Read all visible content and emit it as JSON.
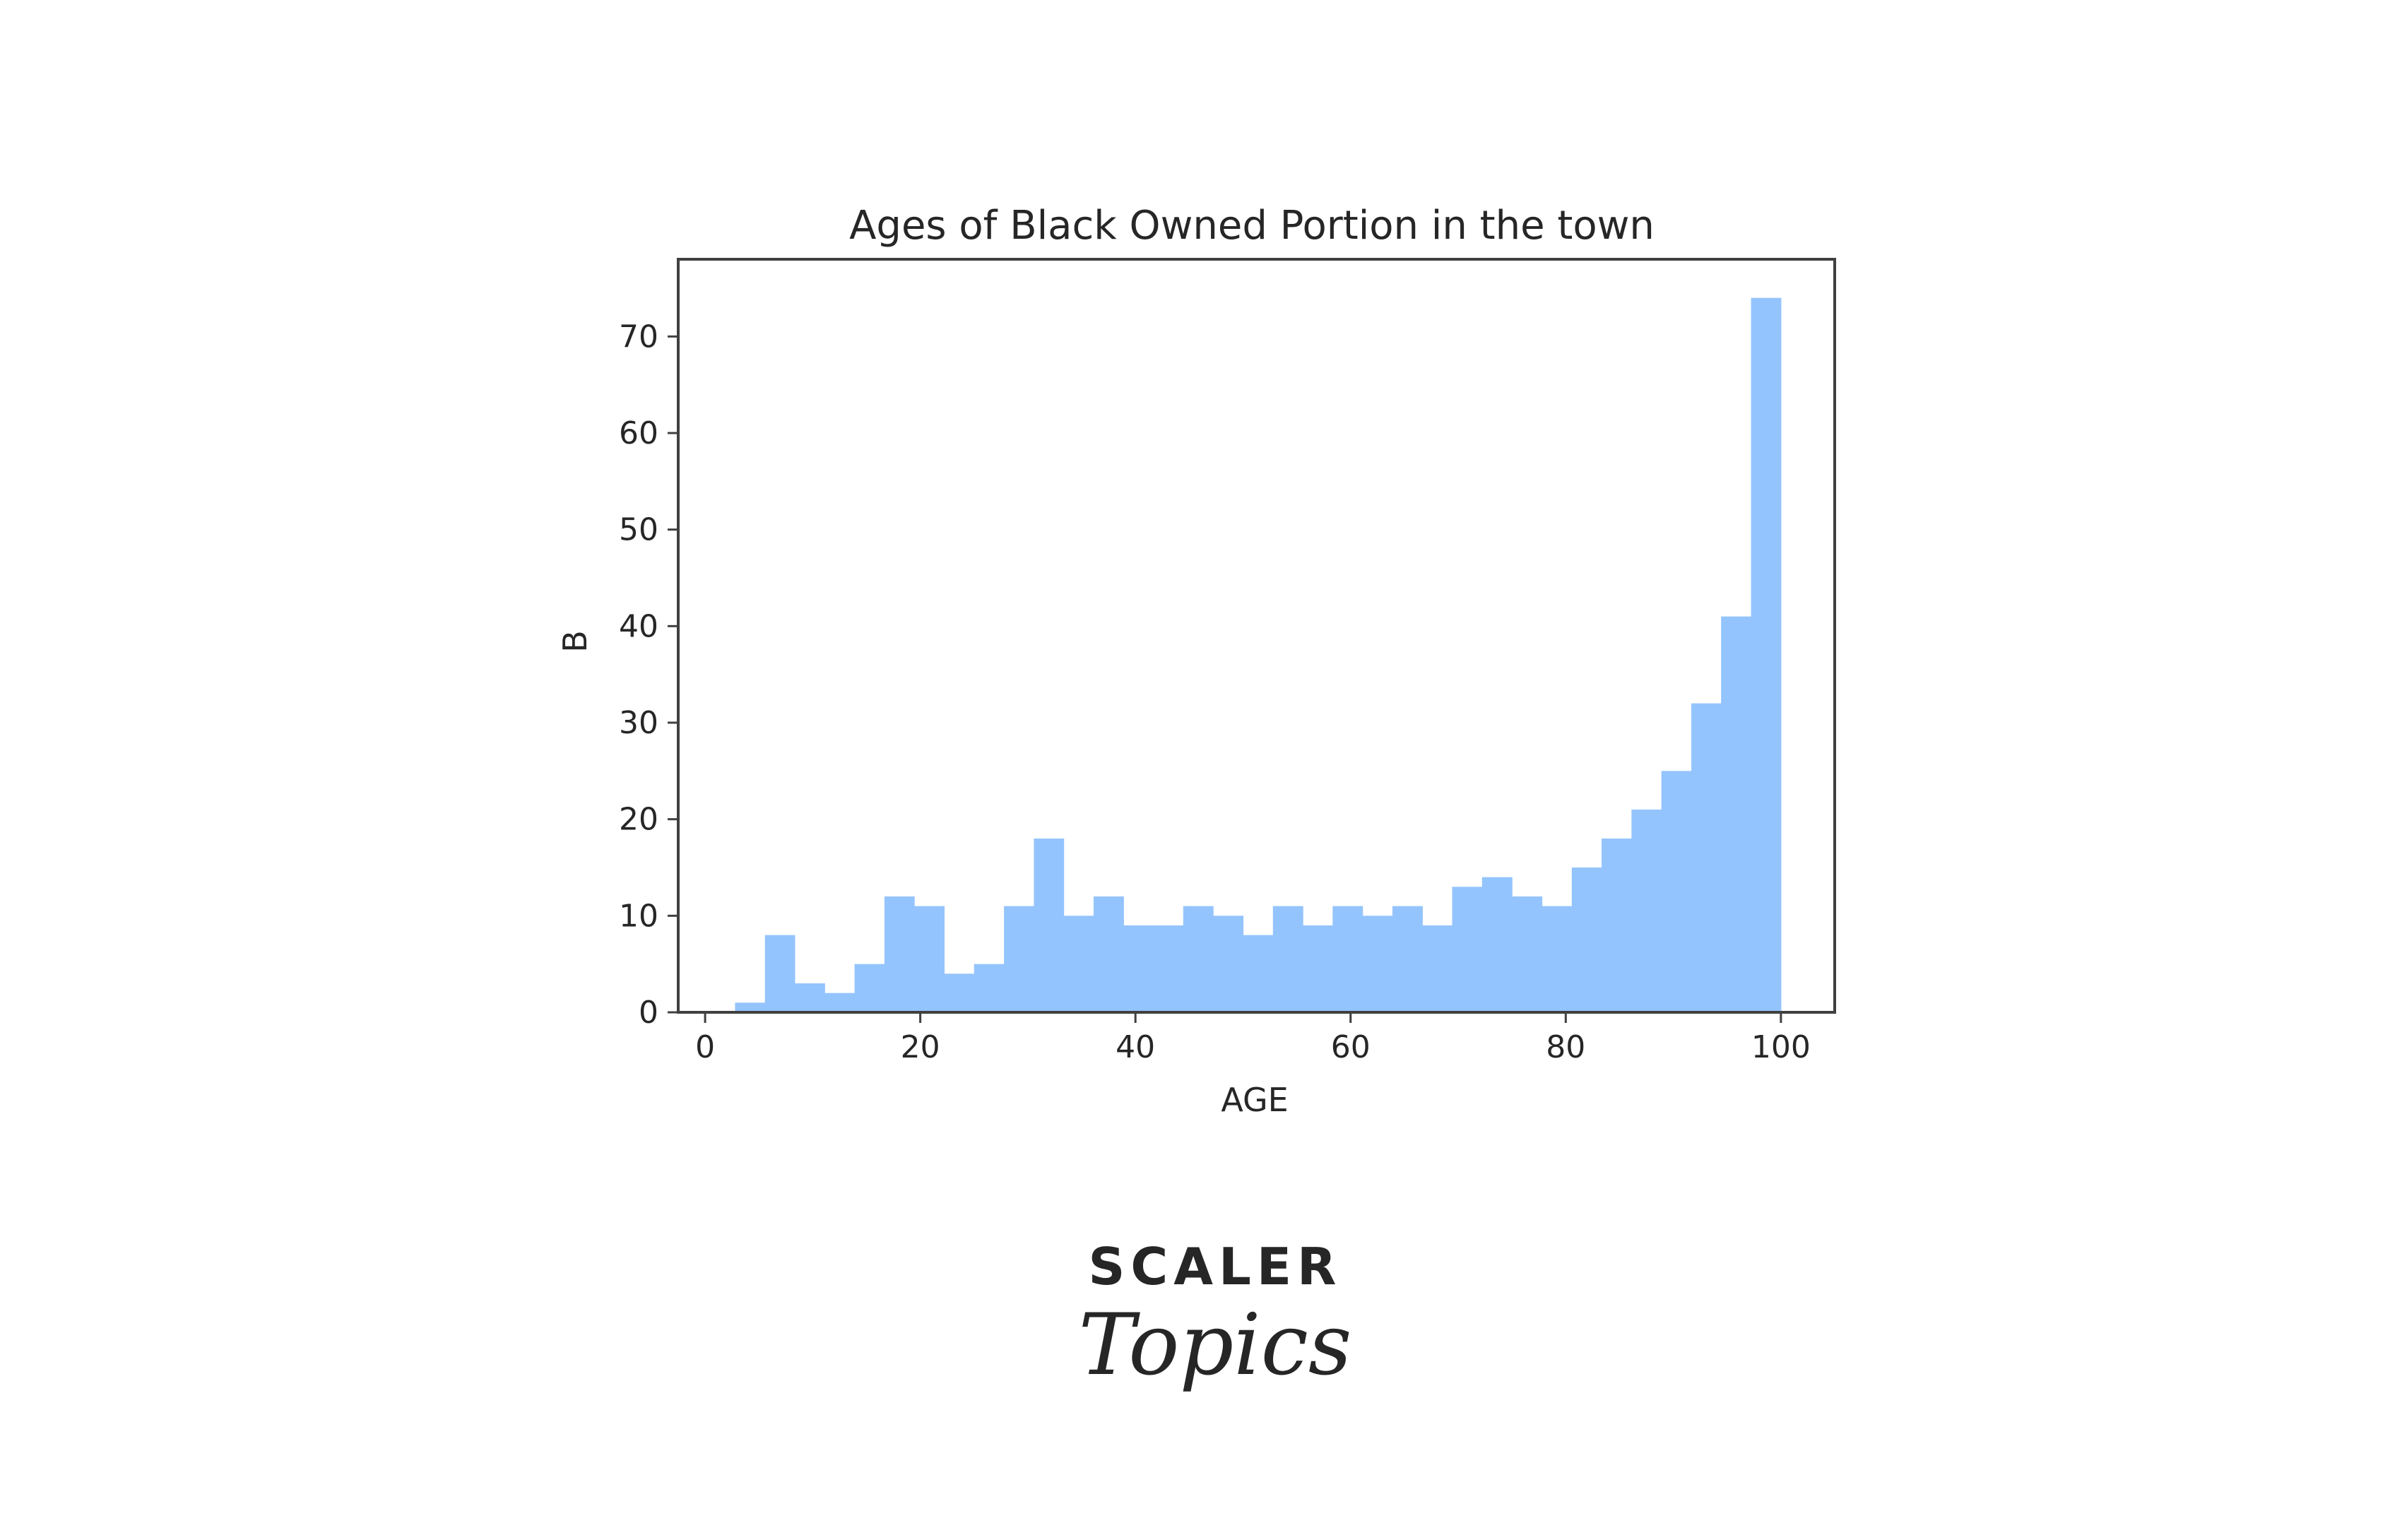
{
  "chart_data": {
    "type": "bar",
    "title": "Ages of Black Owned Portion in the town",
    "xlabel": "AGE",
    "ylabel": "B",
    "xlim": [
      -2.5,
      105
    ],
    "ylim": [
      0,
      78
    ],
    "xticks": [
      0,
      20,
      40,
      60,
      80,
      100
    ],
    "yticks": [
      0,
      10,
      20,
      30,
      40,
      50,
      60,
      70
    ],
    "bar_color": "#94c4fd",
    "grid": false,
    "legend": "none",
    "bins": [
      {
        "x0": 0.0,
        "x1": 2.78,
        "value": 0
      },
      {
        "x0": 2.78,
        "x1": 5.56,
        "value": 1
      },
      {
        "x0": 5.56,
        "x1": 8.33,
        "value": 8
      },
      {
        "x0": 8.33,
        "x1": 11.11,
        "value": 3
      },
      {
        "x0": 11.11,
        "x1": 13.89,
        "value": 2
      },
      {
        "x0": 13.89,
        "x1": 16.67,
        "value": 5
      },
      {
        "x0": 16.67,
        "x1": 19.44,
        "value": 12
      },
      {
        "x0": 19.44,
        "x1": 22.22,
        "value": 11
      },
      {
        "x0": 22.22,
        "x1": 25.0,
        "value": 4
      },
      {
        "x0": 25.0,
        "x1": 27.78,
        "value": 5
      },
      {
        "x0": 27.78,
        "x1": 30.56,
        "value": 11
      },
      {
        "x0": 30.56,
        "x1": 33.33,
        "value": 18
      },
      {
        "x0": 33.33,
        "x1": 36.11,
        "value": 10
      },
      {
        "x0": 36.11,
        "x1": 38.89,
        "value": 12
      },
      {
        "x0": 38.89,
        "x1": 41.67,
        "value": 9
      },
      {
        "x0": 41.67,
        "x1": 44.44,
        "value": 9
      },
      {
        "x0": 44.44,
        "x1": 47.22,
        "value": 11
      },
      {
        "x0": 47.22,
        "x1": 50.0,
        "value": 10
      },
      {
        "x0": 50.0,
        "x1": 52.78,
        "value": 8
      },
      {
        "x0": 52.78,
        "x1": 55.56,
        "value": 11
      },
      {
        "x0": 55.56,
        "x1": 58.33,
        "value": 9
      },
      {
        "x0": 58.33,
        "x1": 61.11,
        "value": 11
      },
      {
        "x0": 61.11,
        "x1": 63.89,
        "value": 10
      },
      {
        "x0": 63.89,
        "x1": 66.67,
        "value": 11
      },
      {
        "x0": 66.67,
        "x1": 69.44,
        "value": 9
      },
      {
        "x0": 69.44,
        "x1": 72.22,
        "value": 13
      },
      {
        "x0": 72.22,
        "x1": 75.0,
        "value": 14
      },
      {
        "x0": 75.0,
        "x1": 77.78,
        "value": 12
      },
      {
        "x0": 77.78,
        "x1": 80.56,
        "value": 11
      },
      {
        "x0": 80.56,
        "x1": 83.33,
        "value": 15
      },
      {
        "x0": 83.33,
        "x1": 86.11,
        "value": 18
      },
      {
        "x0": 86.11,
        "x1": 88.89,
        "value": 21
      },
      {
        "x0": 88.89,
        "x1": 91.67,
        "value": 25
      },
      {
        "x0": 91.67,
        "x1": 94.44,
        "value": 32
      },
      {
        "x0": 94.44,
        "x1": 97.22,
        "value": 41
      },
      {
        "x0": 97.22,
        "x1": 100.0,
        "value": 74
      }
    ]
  },
  "logo": {
    "word_top": "SCALER",
    "word_bottom": "Topics",
    "color_top": "#0d1b3a",
    "color_bottom": "#e0236c"
  }
}
